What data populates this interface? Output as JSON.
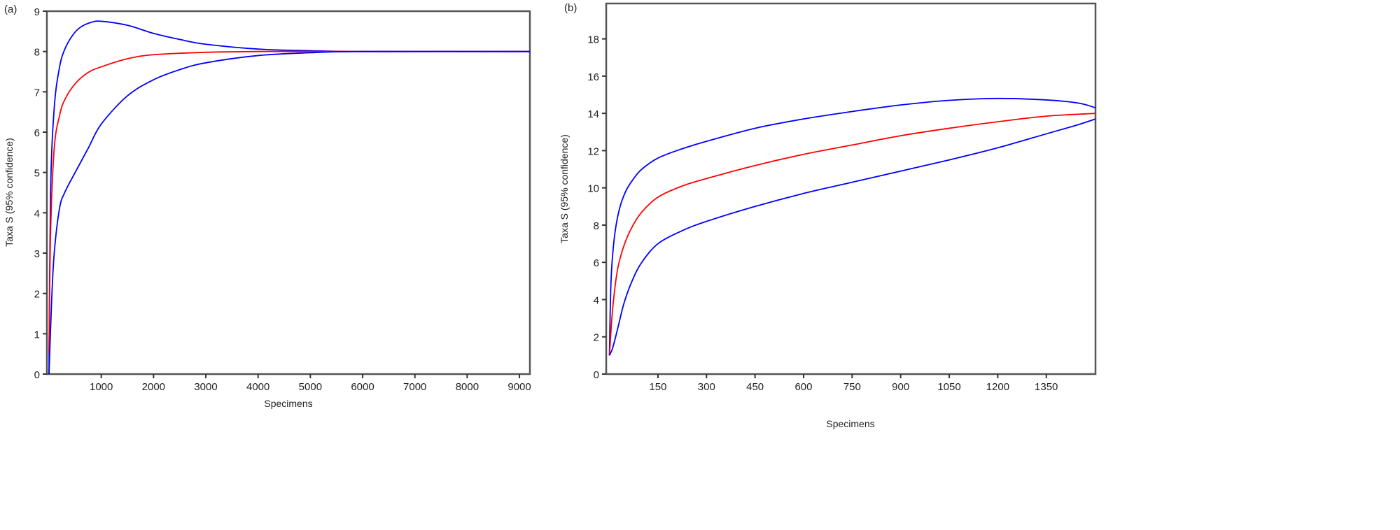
{
  "chart_data": [
    {
      "panel_label": "(a)",
      "type": "line",
      "xlabel": "Specimens",
      "ylabel": "Taxa S (95% confidence)",
      "xlim": [
        0,
        9200
      ],
      "ylim": [
        0,
        9
      ],
      "xticks": [
        1000,
        2000,
        3000,
        4000,
        5000,
        6000,
        7000,
        8000,
        9000
      ],
      "yticks": [
        0,
        1,
        2,
        3,
        4,
        5,
        6,
        7,
        8,
        9
      ],
      "grid": false,
      "series": [
        {
          "role": "upper",
          "color": "#0000ff",
          "x": [
            0,
            30,
            100,
            200,
            300,
            450,
            600,
            800,
            1000,
            1500,
            2000,
            2500,
            3000,
            4000,
            5000,
            6000,
            9200
          ],
          "y": [
            0,
            4.5,
            6.6,
            7.6,
            8.05,
            8.4,
            8.6,
            8.72,
            8.75,
            8.65,
            8.45,
            8.3,
            8.18,
            8.06,
            8.02,
            8.0,
            8.0
          ]
        },
        {
          "role": "mean",
          "color": "#ff0000",
          "x": [
            0,
            30,
            100,
            200,
            300,
            500,
            750,
            1000,
            1500,
            2000,
            3000,
            4000,
            5000,
            9200
          ],
          "y": [
            0.5,
            3.5,
            5.6,
            6.4,
            6.8,
            7.2,
            7.48,
            7.62,
            7.82,
            7.92,
            7.98,
            8.0,
            8.0,
            8.0
          ]
        },
        {
          "role": "lower",
          "color": "#0000ff",
          "x": [
            0,
            50,
            100,
            200,
            300,
            500,
            750,
            1000,
            1500,
            2000,
            2500,
            3000,
            4000,
            5000,
            6000,
            9200
          ],
          "y": [
            0,
            1.8,
            3.0,
            4.1,
            4.5,
            5.0,
            5.6,
            6.2,
            6.9,
            7.3,
            7.55,
            7.72,
            7.9,
            7.97,
            8.0,
            8.0
          ]
        }
      ]
    },
    {
      "panel_label": "(b)",
      "type": "line",
      "xlabel": "Specimens",
      "ylabel": "Taxa S (95% confidence)",
      "xlim": [
        0,
        1502
      ],
      "ylim": [
        0,
        19.9
      ],
      "xticks": [
        150,
        300,
        450,
        600,
        750,
        900,
        1050,
        1200,
        1350
      ],
      "yticks": [
        0,
        2,
        4,
        6,
        8,
        10,
        12,
        14,
        16,
        18
      ],
      "grid": false,
      "series": [
        {
          "role": "upper",
          "color": "#0000ff",
          "x": [
            0,
            5,
            15,
            30,
            50,
            75,
            100,
            150,
            225,
            300,
            450,
            600,
            750,
            900,
            1050,
            1200,
            1350,
            1450,
            1502
          ],
          "y": [
            1,
            5,
            7.3,
            8.8,
            9.8,
            10.5,
            11,
            11.6,
            12.1,
            12.5,
            13.2,
            13.7,
            14.1,
            14.45,
            14.7,
            14.8,
            14.72,
            14.55,
            14.3
          ]
        },
        {
          "role": "mean",
          "color": "#ff0000",
          "x": [
            0,
            10,
            25,
            45,
            70,
            100,
            150,
            225,
            300,
            450,
            600,
            750,
            900,
            1050,
            1200,
            1350,
            1502
          ],
          "y": [
            1,
            3.5,
            5.6,
            6.9,
            7.9,
            8.7,
            9.5,
            10.1,
            10.5,
            11.2,
            11.8,
            12.3,
            12.8,
            13.2,
            13.55,
            13.85,
            14.0
          ]
        },
        {
          "role": "lower",
          "color": "#0000ff",
          "x": [
            0,
            10,
            25,
            45,
            70,
            100,
            150,
            225,
            300,
            450,
            600,
            750,
            900,
            1050,
            1200,
            1350,
            1450,
            1502
          ],
          "y": [
            1,
            1.4,
            2.4,
            3.8,
            5.0,
            6.0,
            7.0,
            7.7,
            8.2,
            9.0,
            9.7,
            10.3,
            10.9,
            11.5,
            12.15,
            12.9,
            13.4,
            13.7
          ]
        }
      ]
    }
  ]
}
